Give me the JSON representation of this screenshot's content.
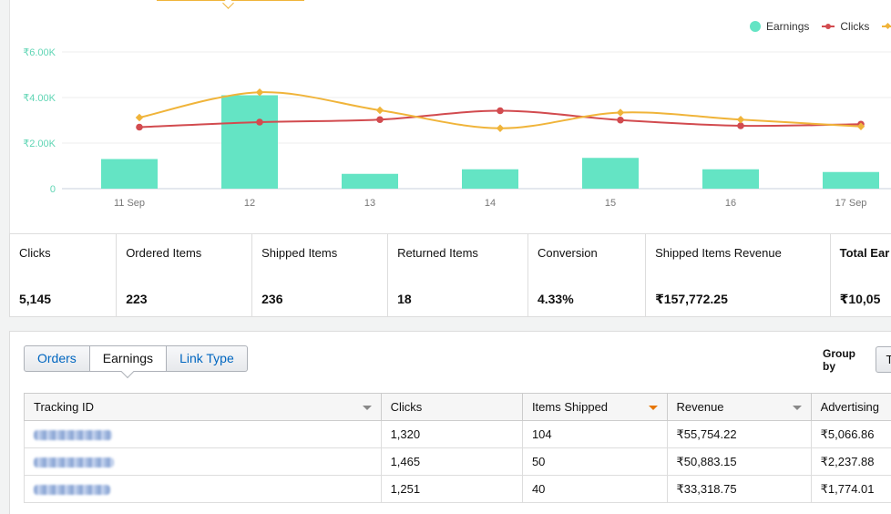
{
  "chart": {
    "legend": [
      {
        "label": "Earnings",
        "color": "#64e4c4",
        "kind": "dot"
      },
      {
        "label": "Clicks",
        "color": "#d24b4f",
        "kind": "line"
      },
      {
        "label": "",
        "color": "#f0b43a",
        "kind": "diamond-line"
      }
    ]
  },
  "chart_data": {
    "type": "bar",
    "categories": [
      "11 Sep",
      "12",
      "13",
      "14",
      "15",
      "16",
      "17 Sep"
    ],
    "y_ticks": [
      "0",
      "₹2.00K",
      "₹4.00K",
      "₹6.00K"
    ],
    "ylim": [
      0,
      6000
    ],
    "grid": true,
    "legend_position": "top-right",
    "series": [
      {
        "name": "Earnings",
        "type": "bar",
        "color": "#64e4c4",
        "values": [
          1300,
          4100,
          650,
          850,
          1350,
          850,
          730
        ]
      },
      {
        "name": "Clicks",
        "type": "line",
        "color": "#d24b4f",
        "values": [
          2700,
          2920,
          3030,
          3420,
          3010,
          2760,
          2830
        ]
      },
      {
        "name": "",
        "type": "line",
        "color": "#f0b43a",
        "values": [
          3120,
          4230,
          3440,
          2650,
          3340,
          3030,
          2730
        ]
      }
    ]
  },
  "stats": [
    {
      "label": "Clicks",
      "value": "5,145"
    },
    {
      "label": "Ordered Items",
      "value": "223"
    },
    {
      "label": "Shipped Items",
      "value": "236"
    },
    {
      "label": "Returned Items",
      "value": "18"
    },
    {
      "label": "Conversion",
      "value": "4.33%"
    },
    {
      "label": "Shipped Items Revenue",
      "value": "₹157,772.25"
    },
    {
      "label": "Total Ear",
      "value": "₹10,05"
    }
  ],
  "report": {
    "tabs": [
      "Orders",
      "Earnings",
      "Link Type"
    ],
    "active_tab": "Earnings",
    "group_by_label": "Group by",
    "group_by_value": "T",
    "columns": [
      "Tracking ID",
      "Clicks",
      "Items Shipped",
      "Revenue",
      "Advertising"
    ],
    "rows": [
      {
        "clicks": "1,320",
        "items_shipped": "104",
        "revenue": "₹55,754.22",
        "advertising": "₹5,066.86"
      },
      {
        "clicks": "1,465",
        "items_shipped": "50",
        "revenue": "₹50,883.15",
        "advertising": "₹2,237.88"
      },
      {
        "clicks": "1,251",
        "items_shipped": "40",
        "revenue": "₹33,318.75",
        "advertising": "₹1,774.01"
      }
    ]
  }
}
